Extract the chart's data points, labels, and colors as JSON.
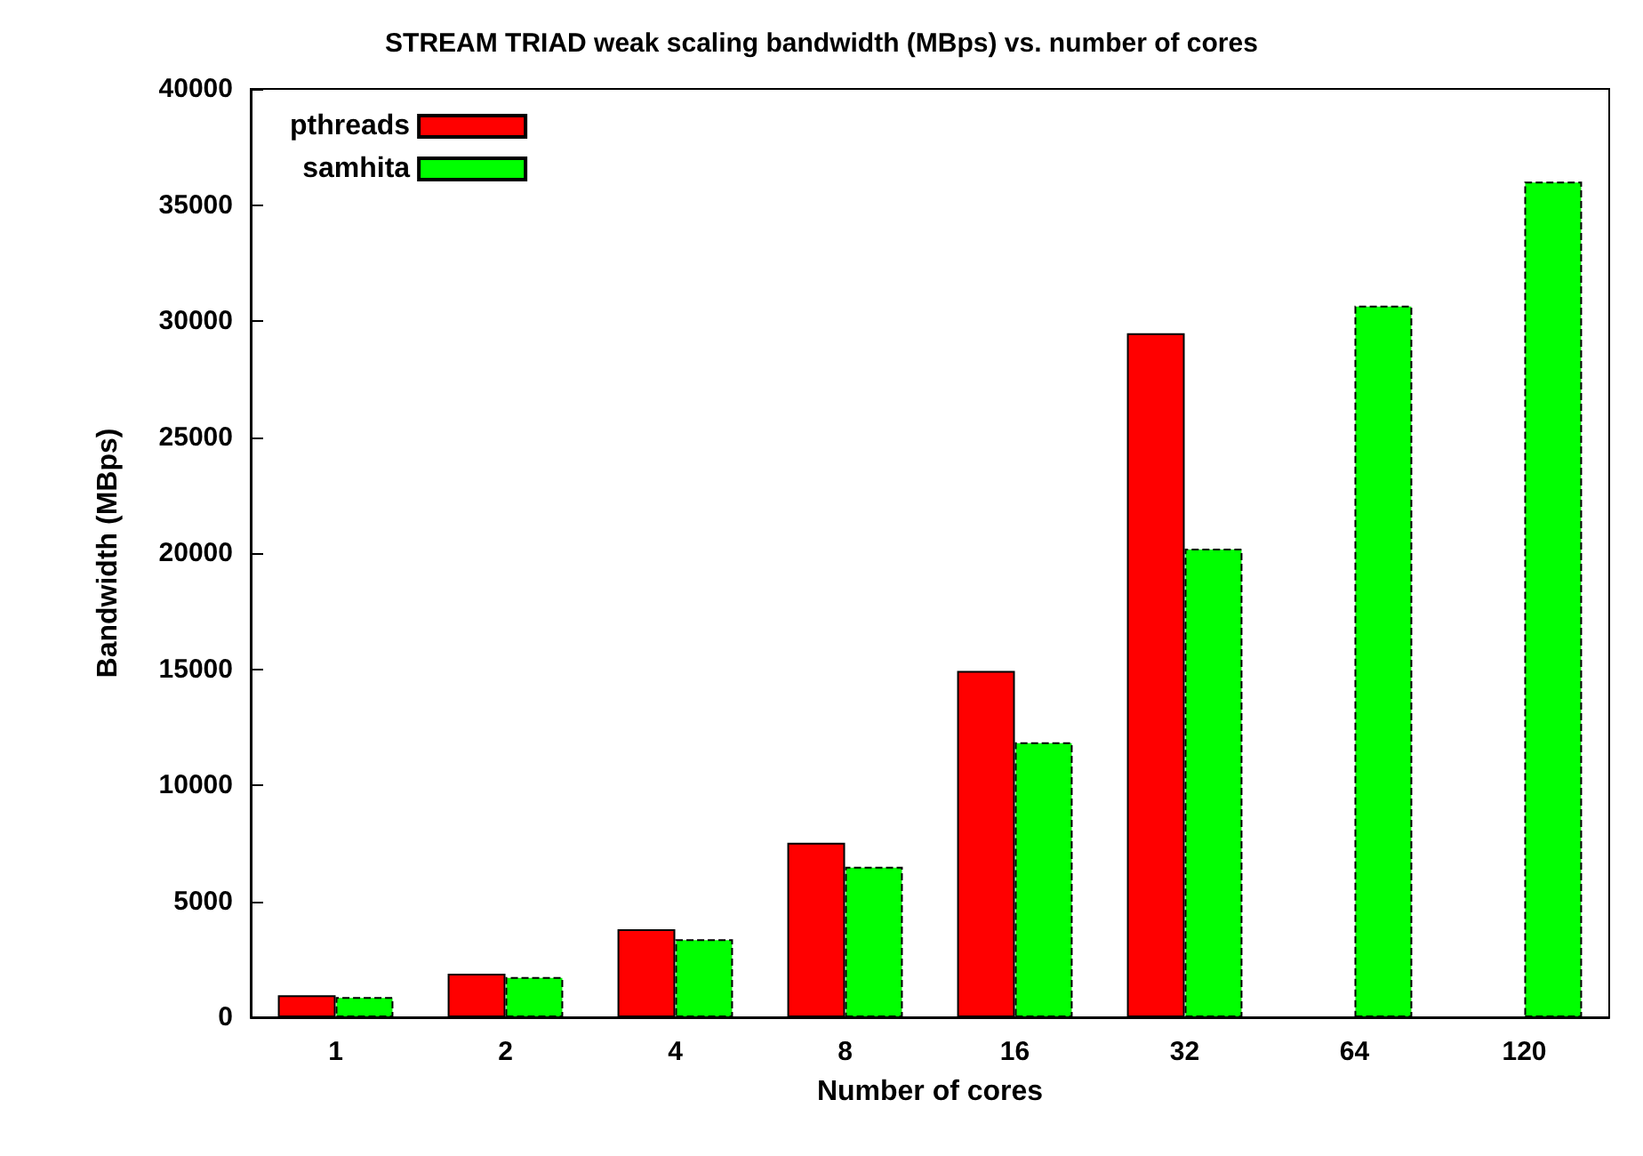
{
  "chart_data": {
    "type": "bar",
    "title": "STREAM TRIAD weak scaling bandwidth (MBps) vs. number of cores",
    "xlabel": "Number of cores",
    "ylabel": "Bandwidth (MBps)",
    "categories": [
      "1",
      "2",
      "4",
      "8",
      "16",
      "32",
      "64",
      "120"
    ],
    "series": [
      {
        "name": "pthreads",
        "color": "#ff0000",
        "line_style": "solid",
        "values": [
          950,
          1880,
          3790,
          7520,
          14920,
          29470,
          null,
          null
        ]
      },
      {
        "name": "samhita",
        "color": "#00ff00",
        "line_style": "dashed",
        "values": [
          870,
          1730,
          3360,
          6480,
          11850,
          20190,
          30660,
          36010
        ]
      }
    ],
    "ylim": [
      0,
      40000
    ],
    "yticks": [
      0,
      5000,
      10000,
      15000,
      20000,
      25000,
      30000,
      35000,
      40000
    ],
    "grid": false,
    "legend": "top left"
  }
}
